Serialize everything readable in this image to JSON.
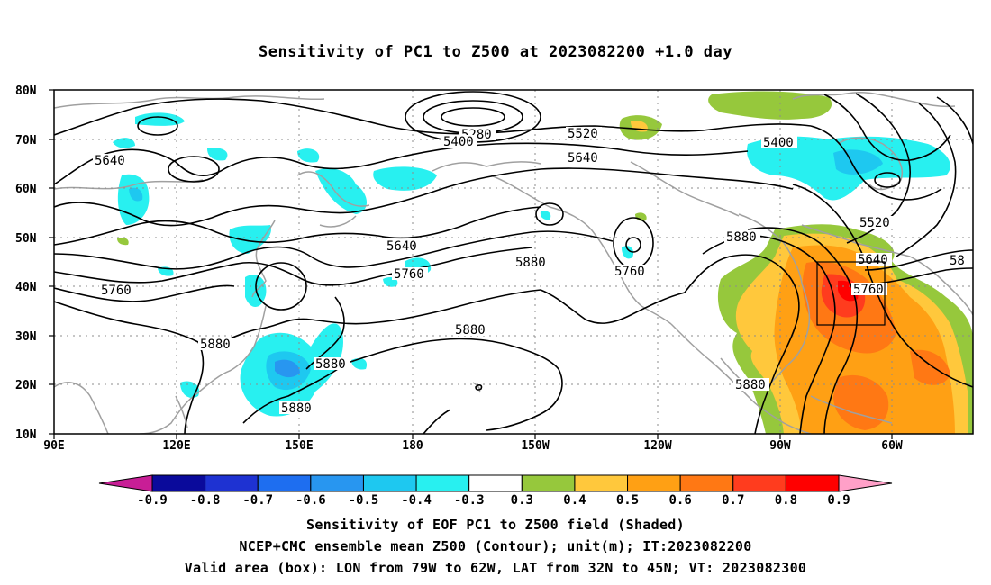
{
  "title": "Sensitivity of PC1 to Z500 at 2023082200 +1.0 day",
  "footer": {
    "line1": "Sensitivity of EOF PC1 to Z500 field (Shaded)",
    "line2": "NCEP+CMC ensemble mean Z500 (Contour); unit(m); IT:2023082200",
    "line3": "Valid area (box): LON from 79W to 62W, LAT from 32N to 45N; VT: 2023082300"
  },
  "map": {
    "lat_labels": [
      "80N",
      "70N",
      "60N",
      "50N",
      "40N",
      "30N",
      "20N",
      "10N"
    ],
    "lon_labels": [
      "90E",
      "120E",
      "150E",
      "180",
      "150W",
      "120W",
      "90W",
      "60W"
    ],
    "valid_box": {
      "lon_from": "79W",
      "lon_to": "62W",
      "lat_from": "32N",
      "lat_to": "45N"
    },
    "contour_labels": [
      "5280",
      "5400",
      "5520",
      "5640",
      "5400",
      "5640",
      "5520",
      "5880",
      "5640",
      "5760",
      "5640",
      "5760",
      "5880",
      "5760",
      "5880",
      "5880",
      "5880",
      "5880",
      "5880",
      "5760",
      "58"
    ]
  },
  "colorbar": {
    "labels": [
      "-0.9",
      "-0.8",
      "-0.7",
      "-0.6",
      "-0.5",
      "-0.4",
      "-0.3",
      "0.3",
      "0.4",
      "0.5",
      "0.6",
      "0.7",
      "0.8",
      "0.9"
    ],
    "colors": [
      "#0a0a9b",
      "#1e32d2",
      "#1e6ef0",
      "#2896f0",
      "#1ec8f0",
      "#28f0f0",
      "#ffffff",
      "#96c83c",
      "#ffc83c",
      "#ffa014",
      "#ff7814",
      "#ff3c1e",
      "#ff0000"
    ],
    "low_arrow": "#c81e96",
    "high_arrow": "#ffa0c8"
  }
}
